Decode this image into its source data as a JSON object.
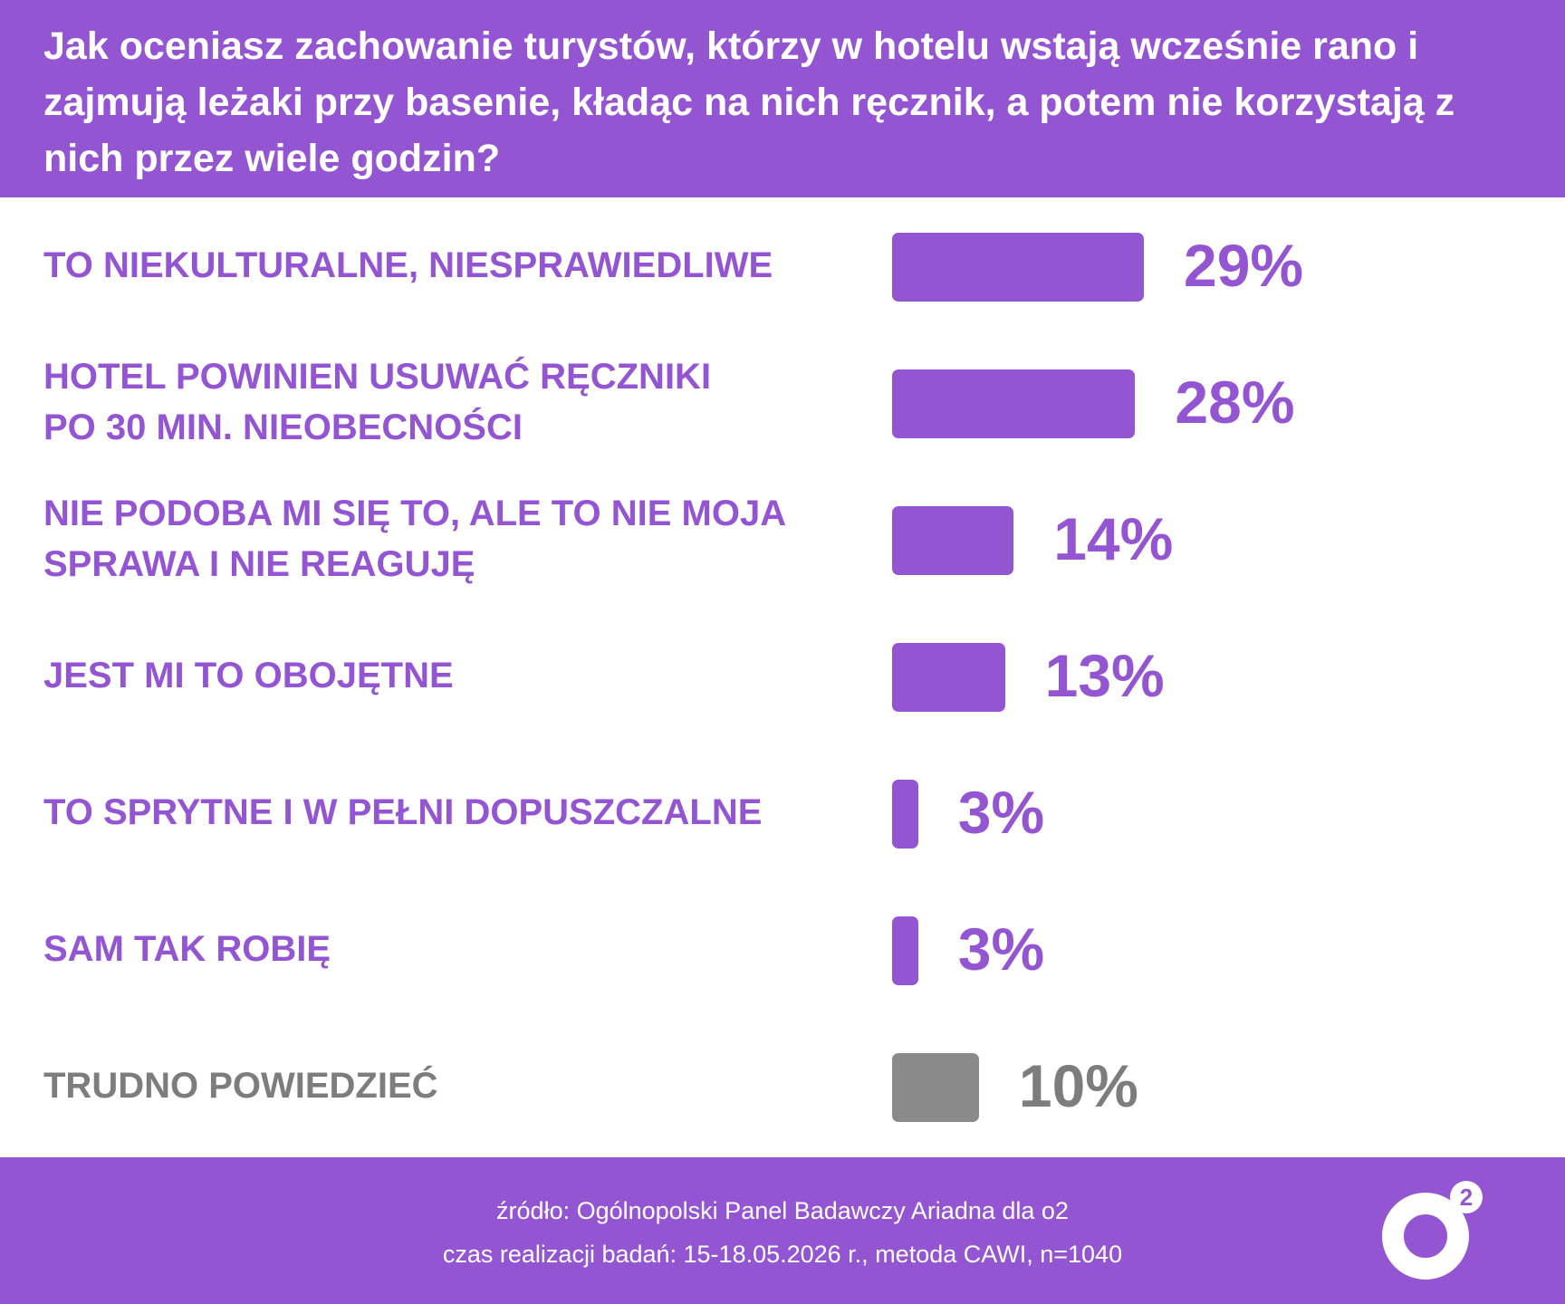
{
  "header": {
    "title": "Jak oceniasz zachowanie turystów, którzy w hotelu wstają wcześnie rano i zajmują leżaki przy basenie, kładąc na nich ręcznik, a potem nie korzystają z nich przez wiele godzin?"
  },
  "chart_data": {
    "type": "bar",
    "orientation": "horizontal",
    "categories": [
      "TO NIEKULTURALNE, NIESPRAWIEDLIWE",
      "HOTEL POWINIEN USUWAĆ RĘCZNIKI\nPO 30 MIN. NIEOBECNOŚCI",
      "NIE PODOBA MI SIĘ TO, ALE TO NIE MOJA\nSPRAWA I NIE REAGUJĘ",
      "JEST MI TO OBOJĘTNE",
      "TO SPRYTNE I W PEŁNI DOPUSZCZALNE",
      "SAM TAK ROBIĘ",
      "TRUDNO POWIEDZIEĆ"
    ],
    "values": [
      29,
      28,
      14,
      13,
      3,
      3,
      10
    ],
    "value_labels": [
      "29%",
      "28%",
      "14%",
      "13%",
      "3%",
      "3%",
      "10%"
    ],
    "colors": [
      "#9455d3",
      "#9455d3",
      "#9455d3",
      "#9455d3",
      "#9455d3",
      "#9455d3",
      "#8a8a8a"
    ],
    "unit": "%",
    "xlim": [
      0,
      29
    ],
    "grid": false
  },
  "footer": {
    "source": "źródło: Ogólnopolski Panel Badawczy Ariadna dla o2",
    "details": "czas realizacji badań: 15-18.05.2026 r., metoda CAWI, n=1040"
  },
  "logo": {
    "text": "o2",
    "icon": "o2-logo-icon"
  },
  "colors": {
    "accent": "#9455d3",
    "neutral": "#8a8a8a",
    "background": "#ffffff"
  }
}
